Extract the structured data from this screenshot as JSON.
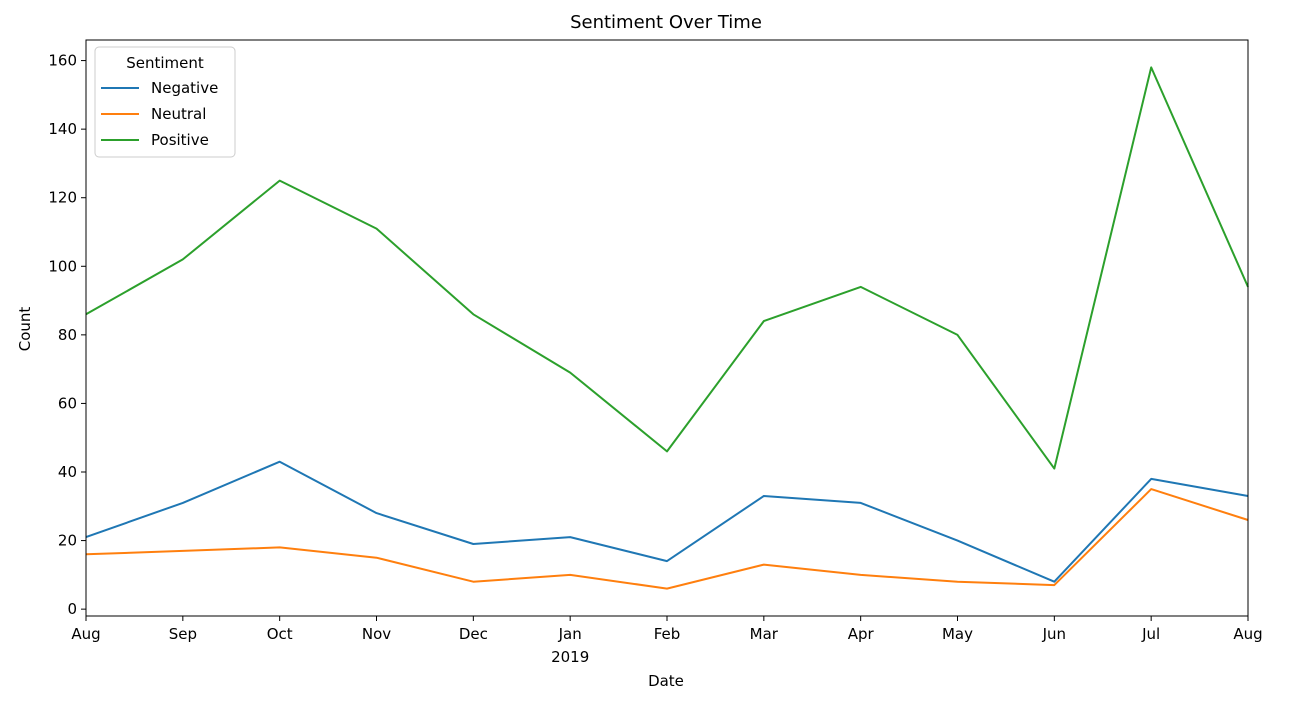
{
  "chart_data": {
    "type": "line",
    "title": "Sentiment Over Time",
    "xlabel": "Date",
    "ylabel": "Count",
    "x": [
      "2018-08",
      "2018-09",
      "2018-10",
      "2018-11",
      "2018-12",
      "2019-01",
      "2019-02",
      "2019-03",
      "2019-04",
      "2019-05",
      "2019-06",
      "2019-07",
      "2019-08"
    ],
    "x_tick_labels": [
      "Aug",
      "Sep",
      "Oct",
      "Nov",
      "Dec",
      "Jan",
      "Feb",
      "Mar",
      "Apr",
      "May",
      "Jun",
      "Jul",
      "Aug"
    ],
    "x_tick_sublabel": "2019",
    "ylim": [
      -2,
      166
    ],
    "y_ticks": [
      0,
      20,
      40,
      60,
      80,
      100,
      120,
      140,
      160
    ],
    "grid": false,
    "legend": {
      "title": "Sentiment",
      "placement": "top-left"
    },
    "series": [
      {
        "name": "Negative",
        "color": "#1f77b4",
        "values": [
          21,
          31,
          43,
          28,
          19,
          21,
          14,
          33,
          31,
          20,
          8,
          38,
          33
        ]
      },
      {
        "name": "Neutral",
        "color": "#ff7f0e",
        "values": [
          16,
          17,
          18,
          15,
          8,
          10,
          6,
          13,
          10,
          8,
          7,
          35,
          26
        ]
      },
      {
        "name": "Positive",
        "color": "#2ca02c",
        "values": [
          86,
          102,
          125,
          111,
          86,
          69,
          46,
          84,
          94,
          80,
          41,
          158,
          94
        ]
      }
    ]
  }
}
